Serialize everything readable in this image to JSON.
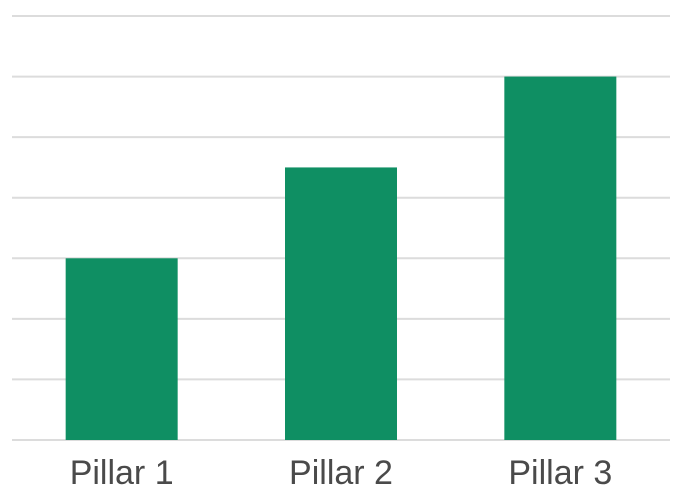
{
  "chart_data": {
    "type": "bar",
    "categories": [
      "Pillar 1",
      "Pillar 2",
      "Pillar 3"
    ],
    "values": [
      3,
      4.5,
      6
    ],
    "ylim": [
      0,
      7
    ],
    "grid": true,
    "title": "",
    "xlabel": "",
    "ylabel": "",
    "bar_color": "#0f8f63",
    "grid_color": "#dcdcdc",
    "label_color": "#4a4a4a"
  }
}
